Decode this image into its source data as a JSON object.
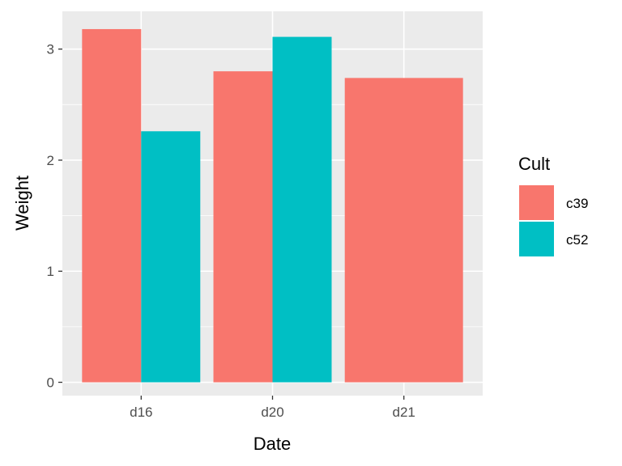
{
  "chart_data": {
    "type": "bar",
    "title": "",
    "xlabel": "Date",
    "ylabel": "Weight",
    "categories": [
      "d16",
      "d20",
      "d21"
    ],
    "series": [
      {
        "name": "c39",
        "color": "#F8766D",
        "values": [
          3.18,
          2.8,
          2.74
        ]
      },
      {
        "name": "c52",
        "color": "#00BFC4",
        "values": [
          2.26,
          3.11,
          null
        ]
      }
    ],
    "ylim": [
      -0.12,
      3.34
    ],
    "yticks": [
      0,
      1,
      2,
      3
    ],
    "grid": true,
    "legend": {
      "title": "Cult",
      "placement": "right"
    },
    "background": "#EBEBEB"
  }
}
